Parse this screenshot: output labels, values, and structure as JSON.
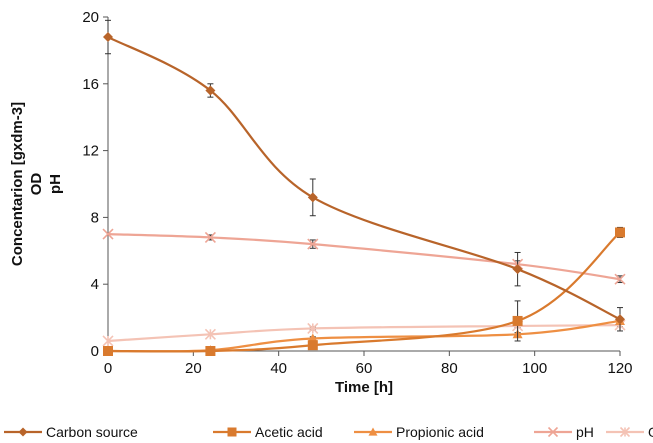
{
  "chart_data": {
    "type": "line",
    "xlabel": "Time [h]",
    "ylabel_lines": [
      "Concentarion [gxdm-3]",
      "OD",
      "pH"
    ],
    "xlim": [
      0,
      120
    ],
    "ylim": [
      0,
      20
    ],
    "xticks": [
      0,
      20,
      40,
      60,
      80,
      100,
      120
    ],
    "yticks": [
      0,
      4,
      8,
      12,
      16,
      20
    ],
    "grid": false,
    "legend_position": "bottom",
    "x": [
      0,
      24,
      48,
      96,
      120
    ],
    "series": [
      {
        "name": "Carbon source",
        "color": "#b8642a",
        "marker": "diamond",
        "values": [
          18.8,
          15.6,
          9.2,
          4.9,
          1.9
        ],
        "errors": [
          1.0,
          0.4,
          1.1,
          1.0,
          0.7
        ]
      },
      {
        "name": "Acetic acid",
        "color": "#d97a2e",
        "marker": "square",
        "values": [
          0.0,
          0.0,
          0.35,
          1.8,
          7.1
        ],
        "errors": [
          0.0,
          0.1,
          0.2,
          1.2,
          0.3
        ]
      },
      {
        "name": "Propionic acid",
        "color": "#ee8f43",
        "marker": "triangle",
        "values": [
          0.0,
          0.05,
          0.75,
          1.0,
          1.8
        ],
        "errors": [
          0.0,
          0.05,
          0.1,
          0.1,
          0.2
        ]
      },
      {
        "name": "pH",
        "color": "#eea595",
        "marker": "x",
        "values": [
          7.0,
          6.8,
          6.4,
          5.2,
          4.3
        ],
        "errors": [
          0.0,
          0.15,
          0.25,
          0.2,
          0.2
        ]
      },
      {
        "name": "OD",
        "color": "#f4c3b5",
        "marker": "star",
        "values": [
          0.6,
          1.0,
          1.35,
          1.5,
          1.55
        ],
        "errors": [
          0.0,
          0.05,
          0.1,
          0.1,
          0.1
        ]
      }
    ]
  }
}
